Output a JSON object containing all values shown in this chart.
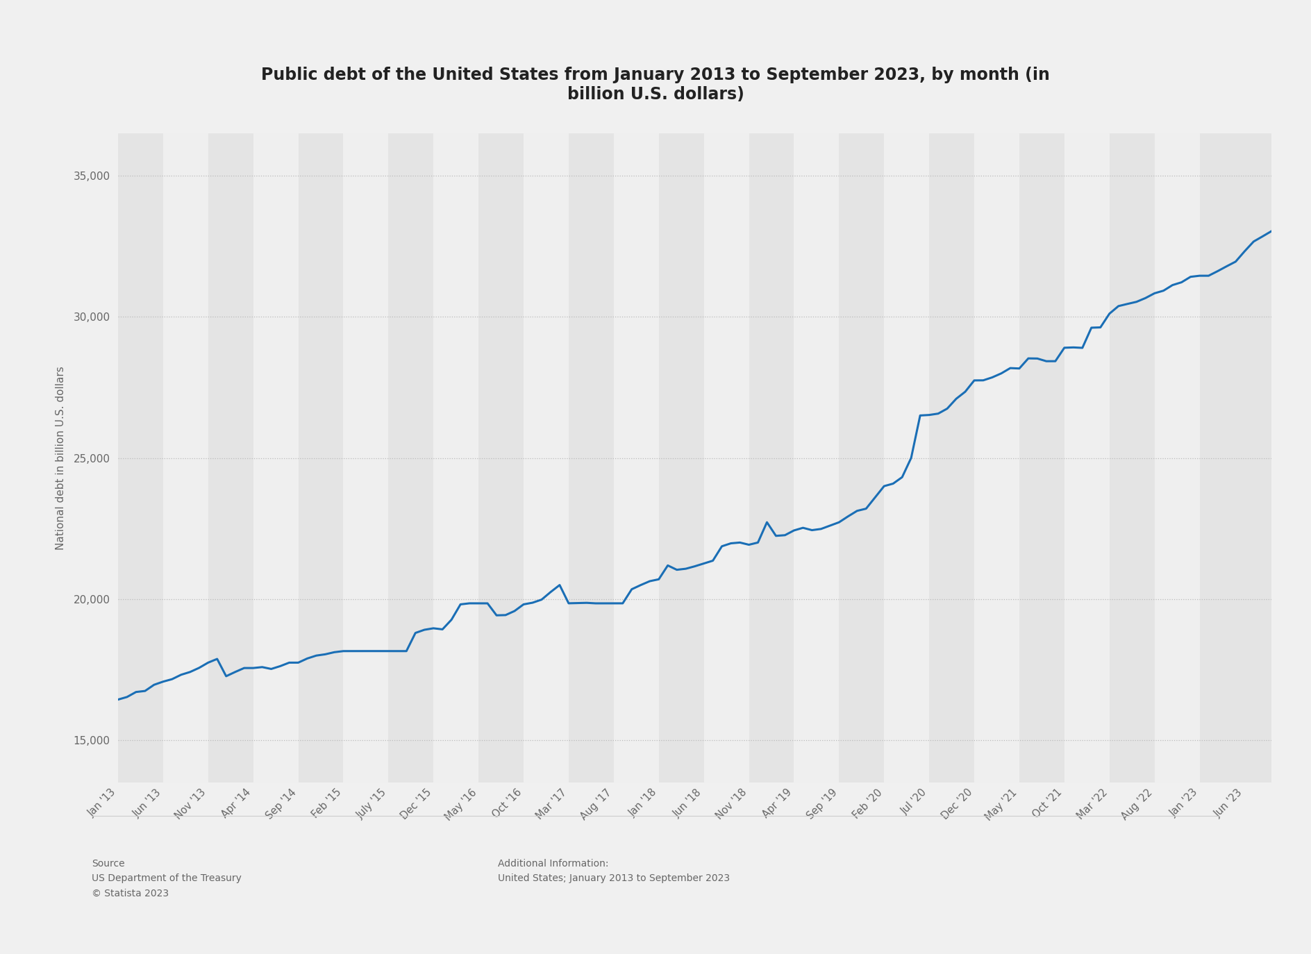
{
  "title": "Public debt of the United States from January 2013 to September 2023, by month (in\nbillion U.S. dollars)",
  "ylabel": "National debt in billion U.S. dollars",
  "background_color": "#f0f0f0",
  "plot_background_color": "#f0f0f0",
  "line_color": "#1a6eb5",
  "line_width": 2.2,
  "yticks": [
    15000,
    20000,
    25000,
    30000,
    35000
  ],
  "source_text": "Source\nUS Department of the Treasury\n© Statista 2023",
  "additional_info": "Additional Information:\nUnited States; January 2013 to September 2023",
  "x_tick_labels": [
    "Jan '13",
    "Jun '13",
    "Nov '13",
    "Apr '14",
    "Sep '14",
    "Feb '15",
    "July '15",
    "Dec '15",
    "May '16",
    "Oct '16",
    "Mar '17",
    "Aug '17",
    "Jan '18",
    "Jun '18",
    "Nov '18",
    "Apr '19",
    "Sep '19",
    "Feb '20",
    "Jul '20",
    "Dec '20",
    "May '21",
    "Oct '21",
    "Mar '22",
    "Aug '22",
    "Jan '23",
    "Jun '23"
  ],
  "monthly_values": [
    16432,
    16524,
    16701,
    16738,
    16956,
    17068,
    17156,
    17312,
    17411,
    17557,
    17742,
    17873,
    17261,
    17411,
    17551,
    17551,
    17584,
    17518,
    17618,
    17742,
    17742,
    17889,
    17992,
    18038,
    18112,
    18151,
    18152,
    18152,
    18152,
    18152,
    18152,
    18152,
    18151,
    18795,
    18907,
    18960,
    18922,
    19264,
    19808,
    19845,
    19844,
    19844,
    19419,
    19428,
    19573,
    19808,
    19867,
    19976,
    20245,
    20493,
    19846,
    19853,
    19862,
    19844,
    19845,
    19845,
    19845,
    20344,
    20493,
    20630,
    20697,
    21188,
    21034,
    21071,
    21158,
    21258,
    21357,
    21867,
    21972,
    22000,
    21922,
    22000,
    22719,
    22237,
    22261,
    22429,
    22522,
    22439,
    22482,
    22601,
    22718,
    22927,
    23123,
    23201,
    23599,
    24000,
    24089,
    24317,
    24999,
    26505,
    26523,
    26571,
    26748,
    27097,
    27347,
    27748,
    27751,
    27856,
    27997,
    28185,
    28171,
    28529,
    28524,
    28429,
    28430,
    28906,
    28918,
    28902,
    29617,
    29628,
    30114,
    30383,
    30460,
    30534,
    30668,
    30837,
    30930,
    31128,
    31227,
    31421,
    31459,
    31459,
    31621,
    31793,
    31959,
    32327,
    32672,
    32856,
    33044
  ]
}
